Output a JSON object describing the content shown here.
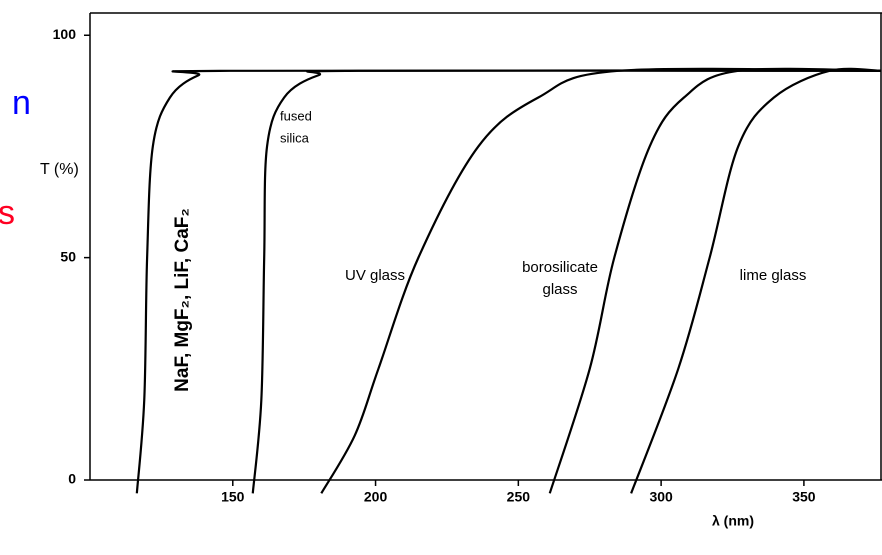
{
  "chart_data": {
    "type": "line",
    "xlabel": "λ (nm)",
    "ylabel": "T (%)",
    "xlim": [
      100,
      377
    ],
    "ylim": [
      0,
      105
    ],
    "xticks": [
      150,
      200,
      250,
      300,
      350
    ],
    "yticks": [
      0,
      50,
      100
    ],
    "color": "#000000",
    "side_texts": [
      "n",
      "s"
    ],
    "annotations": [
      "NaF, MgF₂, LiF, CaF₂",
      "fused",
      "silica",
      "UV glass",
      "borosilicate",
      "glass",
      "lime glass"
    ],
    "series": [
      {
        "name": "NaF, MgF₂, LiF, CaF₂",
        "x": [
          116.4,
          119,
          120,
          122,
          128,
          138,
          149,
          377
        ],
        "values": [
          -3,
          18,
          50,
          75,
          86,
          91,
          92,
          92
        ]
      },
      {
        "name": "fused silica",
        "x": [
          157,
          160,
          161,
          162,
          168,
          180,
          194,
          377
        ],
        "values": [
          -3,
          18,
          50,
          75,
          86,
          91,
          92,
          92
        ]
      },
      {
        "name": "UV glass",
        "x": [
          181,
          192.7,
          201,
          215,
          236,
          257,
          285,
          377
        ],
        "values": [
          -3,
          10,
          25,
          50,
          75,
          86,
          92,
          92
        ]
      },
      {
        "name": "borosilicate glass",
        "x": [
          261,
          275,
          283.6,
          296,
          308,
          327,
          377
        ],
        "values": [
          -3,
          25,
          50,
          75,
          86,
          92,
          92
        ]
      },
      {
        "name": "lime glass",
        "x": [
          289.5,
          306,
          317,
          327,
          339.5,
          359,
          377
        ],
        "values": [
          -3,
          25,
          50,
          75,
          86,
          92,
          92
        ]
      }
    ]
  }
}
